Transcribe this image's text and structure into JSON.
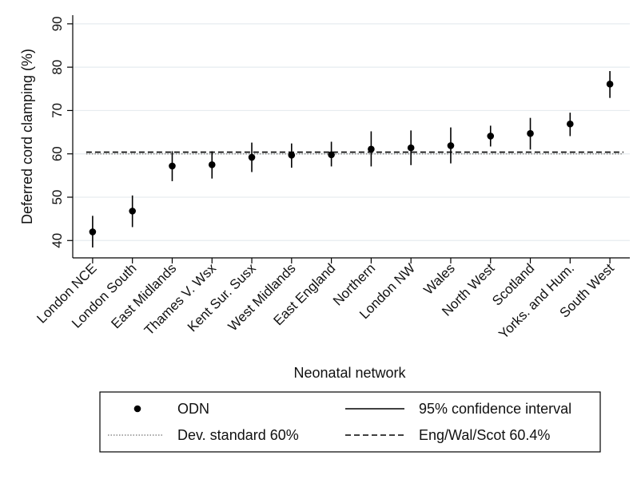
{
  "chart_data": {
    "type": "scatter",
    "xlabel": "Neonatal network",
    "ylabel": "Deferred cord clamping (%)",
    "ylim": [
      36,
      92
    ],
    "yticks": [
      40,
      50,
      60,
      70,
      80,
      90
    ],
    "categories": [
      "London NCE",
      "London South",
      "East Midlands",
      "Thames V. Wsx",
      "Kent Sur. Susx",
      "West Midlands",
      "East England",
      "Northern",
      "London NW",
      "Wales",
      "North West",
      "Scotland",
      "Yorks. and Hum.",
      "South West"
    ],
    "series": [
      {
        "name": "ODN",
        "values": [
          42.0,
          46.8,
          57.2,
          57.5,
          59.2,
          59.7,
          59.8,
          61.1,
          61.4,
          61.9,
          64.1,
          64.7,
          66.9,
          76.1
        ]
      },
      {
        "name": "95% confidence interval",
        "lower": [
          38.4,
          43.1,
          53.7,
          54.3,
          55.8,
          56.8,
          57.1,
          57.1,
          57.4,
          57.8,
          61.7,
          61.0,
          64.1,
          72.9
        ],
        "upper": [
          45.7,
          50.4,
          60.6,
          60.6,
          62.6,
          62.4,
          62.8,
          65.2,
          65.4,
          66.1,
          66.5,
          68.3,
          69.5,
          79.1
        ]
      }
    ],
    "reference_lines": [
      {
        "name": "Dev. standard 60%",
        "value": 60,
        "style": "dotted"
      },
      {
        "name": "Eng/Wal/Scot 60.4%",
        "value": 60.4,
        "style": "dashed"
      }
    ],
    "grid": true,
    "legend": "bottom",
    "legend_entries": [
      {
        "symbol": "dot",
        "label": "ODN"
      },
      {
        "symbol": "solid",
        "label": "95% confidence interval"
      },
      {
        "symbol": "dotted",
        "label": "Dev. standard 60%"
      },
      {
        "symbol": "dashed",
        "label": "Eng/Wal/Scot 60.4%"
      }
    ],
    "colors": {
      "marker": "#000000",
      "grid": "#e6ecef",
      "dotted_line": "#8a8a8a",
      "dashed_line": "#000000"
    }
  }
}
